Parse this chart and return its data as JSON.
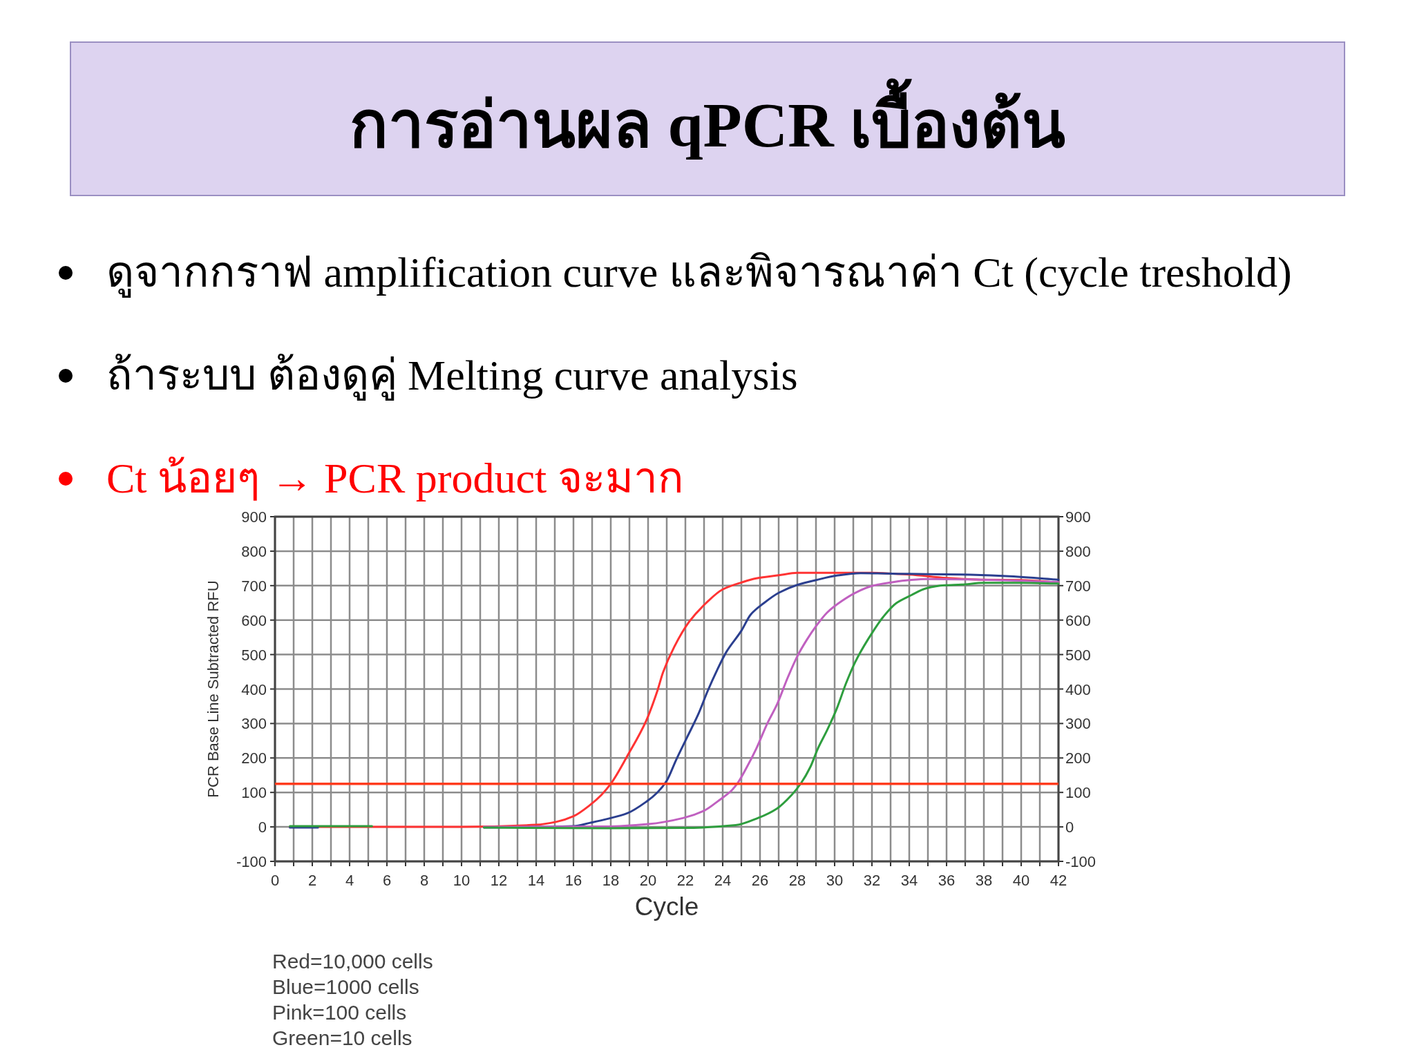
{
  "chart_data": {
    "type": "line",
    "title": "การอ่านผล qPCR เบื้องต้น",
    "xlabel": "Cycle",
    "ylabel": "PCR Base Line Subtracted RFU",
    "annotations": [
      "ดูจากกราฟ amplification curve และพิจารณาค่า Ct (cycle treshold)",
      "ถ้าระบบ ต้องดูคู่ Melting curve analysis",
      "Ct น้อยๆ → PCR product จะมาก",
      "Red=10,000 cells",
      "Blue=1000 cells",
      "Pink=100 cells",
      "Green=10 cells"
    ],
    "xlim": [
      0,
      42
    ],
    "xticks": [
      0,
      {
        "value": 1,
        "label": null
      },
      2,
      {
        "value": 3,
        "label": null
      },
      4,
      {
        "value": 5,
        "label": null
      },
      6,
      {
        "value": 7,
        "label": null
      },
      8,
      {
        "value": 9,
        "label": null
      },
      10,
      {
        "value": 11,
        "label": null
      },
      12,
      {
        "value": 13,
        "label": null
      },
      14,
      {
        "value": 15,
        "label": null
      },
      16,
      {
        "value": 17,
        "label": null
      },
      18,
      {
        "value": 19,
        "label": null
      },
      20,
      {
        "value": 21,
        "label": null
      },
      22,
      {
        "value": 23,
        "label": null
      },
      24,
      {
        "value": 25,
        "label": null
      },
      26,
      {
        "value": 27,
        "label": null
      },
      28,
      {
        "value": 29,
        "label": null
      },
      30,
      {
        "value": 31,
        "label": null
      },
      32,
      {
        "value": 33,
        "label": null
      },
      34,
      {
        "value": 35,
        "label": null
      },
      36,
      {
        "value": 37,
        "label": null
      },
      38,
      {
        "value": 39,
        "label": null
      },
      40,
      {
        "value": 41,
        "label": null
      },
      42
    ],
    "ylim": [
      -100,
      900
    ],
    "yticks": [
      -100,
      0,
      100,
      200,
      300,
      400,
      500,
      600,
      700,
      800,
      900
    ],
    "y2lim": [
      -100,
      900
    ],
    "y2ticks": [
      -100,
      0,
      100,
      200,
      300,
      400,
      500,
      600,
      700,
      800,
      900
    ],
    "grid": true,
    "line_style": "solid",
    "ref_lines": [
      {
        "axis": "y",
        "value": 125,
        "color": "#ff3c1e"
      }
    ],
    "series": [
      {
        "color": "#ff3333",
        "x": [
          0.8,
          5,
          10,
          14,
          15.1,
          16,
          16.9,
          17.5,
          18,
          18.9,
          19.9,
          20.5,
          20.8,
          21.4,
          22.2,
          23.1,
          24,
          25,
          25.8,
          27,
          28,
          30,
          32,
          34,
          36,
          38,
          40,
          42
        ],
        "values": [
          0,
          0,
          0,
          6,
          15,
          31,
          64,
          93,
          125,
          207,
          308,
          395,
          448,
          522,
          595,
          649,
          689,
          709,
          721,
          730,
          737,
          737,
          737,
          732,
          722,
          717,
          716,
          709
        ]
      },
      {
        "color": "#2b3f8f",
        "x": [
          0.8,
          2.3
        ],
        "values": [
          -2,
          -2
        ]
      },
      {
        "color": "#2b3f8f",
        "x": [
          11.2,
          14,
          16,
          16.9,
          17.8,
          18.9,
          19.9,
          20.5,
          21,
          21.5,
          22.1,
          22.7,
          23.2,
          23.7,
          24.2,
          25,
          25.5,
          26.2,
          27,
          28,
          29,
          30.1,
          31.4,
          34,
          36.8,
          39,
          42
        ],
        "values": [
          -2,
          0,
          2,
          12,
          23,
          40,
          73,
          100,
          134,
          194,
          261,
          328,
          395,
          455,
          508,
          569,
          616,
          649,
          679,
          702,
          716,
          729,
          736,
          734,
          732,
          728,
          717
        ]
      },
      {
        "color": "#c060c0",
        "x": [
          11.2,
          17.8,
          20,
          21.9,
          23,
          23.8,
          24.5,
          24.8,
          25.3,
          25.8,
          26.4,
          26.9,
          27.5,
          28,
          28.5,
          29,
          29.6,
          30.4,
          31.1,
          32,
          33,
          34,
          35,
          37,
          40,
          42
        ],
        "values": [
          0,
          1,
          8,
          26,
          47,
          77,
          107,
          127,
          174,
          227,
          301,
          354,
          435,
          495,
          542,
          582,
          622,
          656,
          679,
          699,
          709,
          716,
          719,
          718,
          714,
          710
        ]
      },
      {
        "color": "#2e9e3e",
        "x": [
          0.8,
          5.2
        ],
        "values": [
          2,
          2
        ]
      },
      {
        "color": "#2e9e3e",
        "x": [
          11.2,
          17.8,
          21.9,
          24.7,
          25.9,
          26.9,
          27.7,
          28.2,
          28.7,
          29.1,
          29.6,
          30.1,
          30.6,
          31.1,
          31.8,
          32.6,
          33.3,
          34.1,
          34.9,
          35.9,
          36.8,
          38,
          40,
          42
        ],
        "values": [
          -2,
          -4,
          -3,
          5,
          26,
          53,
          93,
          127,
          174,
          227,
          281,
          341,
          415,
          478,
          545,
          609,
          649,
          672,
          692,
          701,
          703,
          708,
          708,
          706
        ]
      }
    ]
  }
}
